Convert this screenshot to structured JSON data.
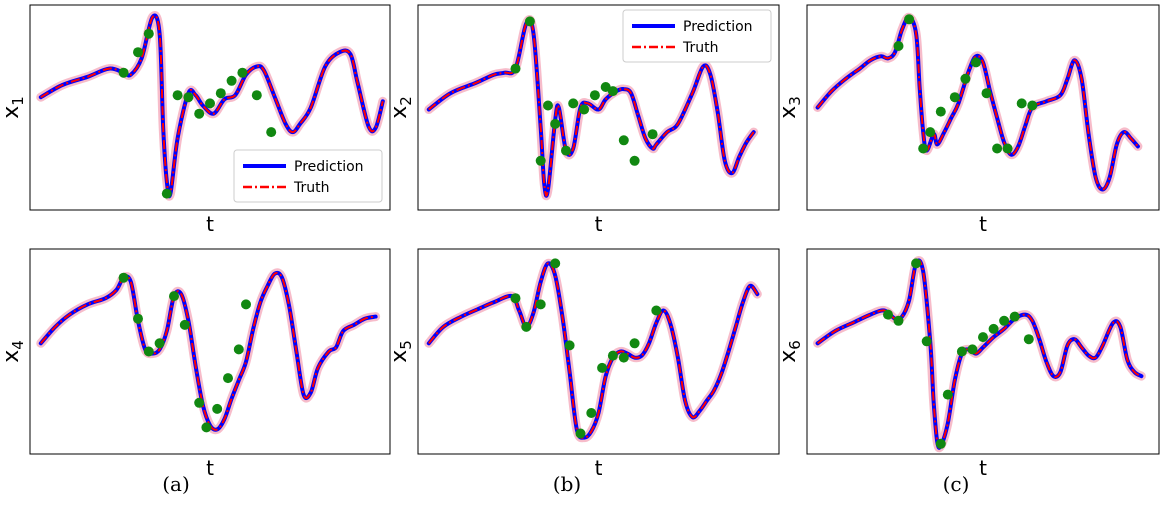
{
  "colors": {
    "prediction": "#0000ff",
    "truth": "#ff0000",
    "uncertainty": "#f4a6b8",
    "observation": "#118811"
  },
  "legend": {
    "prediction": "Prediction",
    "truth": "Truth"
  },
  "captions": [
    "(a)",
    "(b)",
    "(c)"
  ],
  "chart_data": [
    {
      "type": "line",
      "ylabel": "x1",
      "xlabel": "t",
      "legend_position": "lower-right",
      "xlim": [
        0,
        1
      ],
      "ylim": [
        0,
        1
      ],
      "series_points": [
        [
          0.03,
          0.55
        ],
        [
          0.09,
          0.61
        ],
        [
          0.16,
          0.65
        ],
        [
          0.22,
          0.69
        ],
        [
          0.26,
          0.67
        ],
        [
          0.28,
          0.66
        ],
        [
          0.31,
          0.74
        ],
        [
          0.34,
          0.94
        ],
        [
          0.36,
          0.86
        ],
        [
          0.37,
          0.4
        ],
        [
          0.38,
          0.14
        ],
        [
          0.39,
          0.08
        ],
        [
          0.41,
          0.35
        ],
        [
          0.44,
          0.57
        ],
        [
          0.46,
          0.56
        ],
        [
          0.48,
          0.51
        ],
        [
          0.51,
          0.47
        ],
        [
          0.54,
          0.54
        ],
        [
          0.57,
          0.56
        ],
        [
          0.6,
          0.66
        ],
        [
          0.63,
          0.7
        ],
        [
          0.65,
          0.68
        ],
        [
          0.68,
          0.55
        ],
        [
          0.71,
          0.42
        ],
        [
          0.73,
          0.38
        ],
        [
          0.75,
          0.42
        ],
        [
          0.78,
          0.5
        ],
        [
          0.82,
          0.7
        ],
        [
          0.86,
          0.77
        ],
        [
          0.89,
          0.76
        ],
        [
          0.91,
          0.62
        ],
        [
          0.94,
          0.41
        ],
        [
          0.96,
          0.4
        ],
        [
          0.98,
          0.53
        ]
      ],
      "observations": [
        [
          0.26,
          0.67
        ],
        [
          0.3,
          0.77
        ],
        [
          0.33,
          0.86
        ],
        [
          0.38,
          0.08
        ],
        [
          0.41,
          0.56
        ],
        [
          0.44,
          0.55
        ],
        [
          0.47,
          0.47
        ],
        [
          0.5,
          0.52
        ],
        [
          0.53,
          0.57
        ],
        [
          0.56,
          0.63
        ],
        [
          0.59,
          0.67
        ],
        [
          0.63,
          0.56
        ],
        [
          0.67,
          0.38
        ]
      ]
    },
    {
      "type": "line",
      "ylabel": "x2",
      "xlabel": "t",
      "legend_position": "top-right",
      "xlim": [
        0,
        1
      ],
      "ylim": [
        0,
        1
      ],
      "series_points": [
        [
          0.03,
          0.49
        ],
        [
          0.09,
          0.57
        ],
        [
          0.16,
          0.62
        ],
        [
          0.21,
          0.66
        ],
        [
          0.24,
          0.67
        ],
        [
          0.27,
          0.69
        ],
        [
          0.3,
          0.91
        ],
        [
          0.32,
          0.86
        ],
        [
          0.34,
          0.4
        ],
        [
          0.35,
          0.12
        ],
        [
          0.36,
          0.1
        ],
        [
          0.38,
          0.44
        ],
        [
          0.39,
          0.5
        ],
        [
          0.41,
          0.29
        ],
        [
          0.43,
          0.3
        ],
        [
          0.45,
          0.5
        ],
        [
          0.47,
          0.52
        ],
        [
          0.5,
          0.49
        ],
        [
          0.52,
          0.54
        ],
        [
          0.55,
          0.58
        ],
        [
          0.57,
          0.59
        ],
        [
          0.59,
          0.57
        ],
        [
          0.61,
          0.46
        ],
        [
          0.63,
          0.35
        ],
        [
          0.65,
          0.3
        ],
        [
          0.66,
          0.32
        ],
        [
          0.69,
          0.38
        ],
        [
          0.72,
          0.42
        ],
        [
          0.76,
          0.57
        ],
        [
          0.79,
          0.7
        ],
        [
          0.81,
          0.66
        ],
        [
          0.83,
          0.48
        ],
        [
          0.85,
          0.24
        ],
        [
          0.87,
          0.18
        ],
        [
          0.89,
          0.26
        ],
        [
          0.91,
          0.33
        ],
        [
          0.93,
          0.38
        ]
      ],
      "observations": [
        [
          0.27,
          0.69
        ],
        [
          0.31,
          0.92
        ],
        [
          0.34,
          0.24
        ],
        [
          0.36,
          0.51
        ],
        [
          0.38,
          0.42
        ],
        [
          0.41,
          0.29
        ],
        [
          0.43,
          0.52
        ],
        [
          0.46,
          0.49
        ],
        [
          0.49,
          0.56
        ],
        [
          0.52,
          0.6
        ],
        [
          0.54,
          0.58
        ],
        [
          0.57,
          0.34
        ],
        [
          0.6,
          0.24
        ],
        [
          0.65,
          0.37
        ]
      ]
    },
    {
      "type": "line",
      "ylabel": "x3",
      "xlabel": "t",
      "legend_position": "none",
      "xlim": [
        0,
        1
      ],
      "ylim": [
        0,
        1
      ],
      "series_points": [
        [
          0.03,
          0.5
        ],
        [
          0.07,
          0.58
        ],
        [
          0.11,
          0.64
        ],
        [
          0.15,
          0.69
        ],
        [
          0.18,
          0.73
        ],
        [
          0.21,
          0.75
        ],
        [
          0.23,
          0.74
        ],
        [
          0.25,
          0.77
        ],
        [
          0.27,
          0.88
        ],
        [
          0.29,
          0.94
        ],
        [
          0.31,
          0.86
        ],
        [
          0.32,
          0.6
        ],
        [
          0.33,
          0.38
        ],
        [
          0.34,
          0.29
        ],
        [
          0.36,
          0.37
        ],
        [
          0.37,
          0.32
        ],
        [
          0.39,
          0.38
        ],
        [
          0.41,
          0.45
        ],
        [
          0.43,
          0.52
        ],
        [
          0.46,
          0.68
        ],
        [
          0.48,
          0.75
        ],
        [
          0.5,
          0.72
        ],
        [
          0.52,
          0.58
        ],
        [
          0.54,
          0.45
        ],
        [
          0.56,
          0.33
        ],
        [
          0.58,
          0.27
        ],
        [
          0.6,
          0.31
        ],
        [
          0.62,
          0.41
        ],
        [
          0.64,
          0.5
        ],
        [
          0.68,
          0.53
        ],
        [
          0.72,
          0.56
        ],
        [
          0.74,
          0.64
        ],
        [
          0.76,
          0.73
        ],
        [
          0.78,
          0.64
        ],
        [
          0.8,
          0.37
        ],
        [
          0.82,
          0.16
        ],
        [
          0.84,
          0.1
        ],
        [
          0.86,
          0.16
        ],
        [
          0.88,
          0.32
        ],
        [
          0.9,
          0.38
        ],
        [
          0.92,
          0.35
        ],
        [
          0.94,
          0.31
        ]
      ],
      "observations": [
        [
          0.26,
          0.8
        ],
        [
          0.29,
          0.93
        ],
        [
          0.33,
          0.3
        ],
        [
          0.35,
          0.38
        ],
        [
          0.38,
          0.48
        ],
        [
          0.42,
          0.55
        ],
        [
          0.45,
          0.64
        ],
        [
          0.48,
          0.72
        ],
        [
          0.51,
          0.57
        ],
        [
          0.54,
          0.3
        ],
        [
          0.57,
          0.3
        ],
        [
          0.61,
          0.52
        ],
        [
          0.64,
          0.51
        ]
      ]
    },
    {
      "type": "line",
      "ylabel": "x4",
      "xlabel": "t",
      "legend_position": "none",
      "xlim": [
        0,
        1
      ],
      "ylim": [
        0,
        1
      ],
      "series_points": [
        [
          0.03,
          0.54
        ],
        [
          0.07,
          0.62
        ],
        [
          0.11,
          0.68
        ],
        [
          0.16,
          0.73
        ],
        [
          0.21,
          0.76
        ],
        [
          0.24,
          0.8
        ],
        [
          0.26,
          0.86
        ],
        [
          0.28,
          0.84
        ],
        [
          0.3,
          0.65
        ],
        [
          0.32,
          0.51
        ],
        [
          0.34,
          0.49
        ],
        [
          0.36,
          0.51
        ],
        [
          0.38,
          0.6
        ],
        [
          0.4,
          0.77
        ],
        [
          0.42,
          0.78
        ],
        [
          0.44,
          0.65
        ],
        [
          0.46,
          0.43
        ],
        [
          0.48,
          0.24
        ],
        [
          0.5,
          0.14
        ],
        [
          0.52,
          0.12
        ],
        [
          0.54,
          0.17
        ],
        [
          0.56,
          0.27
        ],
        [
          0.58,
          0.36
        ],
        [
          0.6,
          0.45
        ],
        [
          0.62,
          0.61
        ],
        [
          0.64,
          0.74
        ],
        [
          0.66,
          0.82
        ],
        [
          0.68,
          0.88
        ],
        [
          0.7,
          0.86
        ],
        [
          0.72,
          0.72
        ],
        [
          0.74,
          0.5
        ],
        [
          0.76,
          0.29
        ],
        [
          0.78,
          0.3
        ],
        [
          0.8,
          0.42
        ],
        [
          0.83,
          0.5
        ],
        [
          0.85,
          0.52
        ],
        [
          0.87,
          0.6
        ],
        [
          0.9,
          0.63
        ],
        [
          0.93,
          0.66
        ],
        [
          0.96,
          0.67
        ]
      ],
      "observations": [
        [
          0.26,
          0.86
        ],
        [
          0.3,
          0.66
        ],
        [
          0.33,
          0.5
        ],
        [
          0.36,
          0.54
        ],
        [
          0.4,
          0.77
        ],
        [
          0.43,
          0.63
        ],
        [
          0.47,
          0.25
        ],
        [
          0.49,
          0.13
        ],
        [
          0.52,
          0.22
        ],
        [
          0.55,
          0.37
        ],
        [
          0.58,
          0.51
        ],
        [
          0.6,
          0.73
        ]
      ]
    },
    {
      "type": "line",
      "ylabel": "x5",
      "xlabel": "t",
      "legend_position": "none",
      "xlim": [
        0,
        1
      ],
      "ylim": [
        0,
        1
      ],
      "series_points": [
        [
          0.03,
          0.54
        ],
        [
          0.07,
          0.62
        ],
        [
          0.12,
          0.67
        ],
        [
          0.17,
          0.71
        ],
        [
          0.21,
          0.74
        ],
        [
          0.26,
          0.77
        ],
        [
          0.28,
          0.7
        ],
        [
          0.3,
          0.62
        ],
        [
          0.32,
          0.69
        ],
        [
          0.34,
          0.84
        ],
        [
          0.36,
          0.93
        ],
        [
          0.38,
          0.87
        ],
        [
          0.4,
          0.67
        ],
        [
          0.42,
          0.4
        ],
        [
          0.44,
          0.12
        ],
        [
          0.46,
          0.08
        ],
        [
          0.48,
          0.11
        ],
        [
          0.5,
          0.2
        ],
        [
          0.52,
          0.38
        ],
        [
          0.54,
          0.47
        ],
        [
          0.56,
          0.5
        ],
        [
          0.58,
          0.49
        ],
        [
          0.6,
          0.47
        ],
        [
          0.62,
          0.48
        ],
        [
          0.64,
          0.54
        ],
        [
          0.66,
          0.64
        ],
        [
          0.68,
          0.7
        ],
        [
          0.7,
          0.63
        ],
        [
          0.72,
          0.47
        ],
        [
          0.74,
          0.26
        ],
        [
          0.76,
          0.18
        ],
        [
          0.78,
          0.21
        ],
        [
          0.8,
          0.26
        ],
        [
          0.82,
          0.31
        ],
        [
          0.84,
          0.39
        ],
        [
          0.86,
          0.5
        ],
        [
          0.88,
          0.62
        ],
        [
          0.9,
          0.74
        ],
        [
          0.92,
          0.82
        ],
        [
          0.94,
          0.78
        ]
      ],
      "observations": [
        [
          0.27,
          0.76
        ],
        [
          0.3,
          0.62
        ],
        [
          0.34,
          0.73
        ],
        [
          0.38,
          0.93
        ],
        [
          0.42,
          0.53
        ],
        [
          0.45,
          0.1
        ],
        [
          0.48,
          0.2
        ],
        [
          0.51,
          0.42
        ],
        [
          0.54,
          0.48
        ],
        [
          0.57,
          0.47
        ],
        [
          0.6,
          0.54
        ],
        [
          0.66,
          0.7
        ]
      ]
    },
    {
      "type": "line",
      "ylabel": "x6",
      "xlabel": "t",
      "legend_position": "none",
      "xlim": [
        0,
        1
      ],
      "ylim": [
        0,
        1
      ],
      "series_points": [
        [
          0.03,
          0.54
        ],
        [
          0.08,
          0.6
        ],
        [
          0.13,
          0.64
        ],
        [
          0.18,
          0.68
        ],
        [
          0.22,
          0.7
        ],
        [
          0.25,
          0.66
        ],
        [
          0.27,
          0.67
        ],
        [
          0.29,
          0.75
        ],
        [
          0.31,
          0.93
        ],
        [
          0.33,
          0.89
        ],
        [
          0.35,
          0.55
        ],
        [
          0.36,
          0.25
        ],
        [
          0.37,
          0.06
        ],
        [
          0.38,
          0.04
        ],
        [
          0.4,
          0.15
        ],
        [
          0.42,
          0.36
        ],
        [
          0.44,
          0.49
        ],
        [
          0.46,
          0.51
        ],
        [
          0.48,
          0.49
        ],
        [
          0.5,
          0.52
        ],
        [
          0.53,
          0.57
        ],
        [
          0.56,
          0.61
        ],
        [
          0.59,
          0.66
        ],
        [
          0.62,
          0.68
        ],
        [
          0.64,
          0.65
        ],
        [
          0.66,
          0.56
        ],
        [
          0.68,
          0.45
        ],
        [
          0.7,
          0.38
        ],
        [
          0.72,
          0.4
        ],
        [
          0.74,
          0.53
        ],
        [
          0.76,
          0.56
        ],
        [
          0.78,
          0.52
        ],
        [
          0.8,
          0.48
        ],
        [
          0.82,
          0.47
        ],
        [
          0.84,
          0.53
        ],
        [
          0.87,
          0.64
        ],
        [
          0.89,
          0.62
        ],
        [
          0.91,
          0.46
        ],
        [
          0.93,
          0.4
        ],
        [
          0.95,
          0.38
        ]
      ],
      "observations": [
        [
          0.23,
          0.68
        ],
        [
          0.26,
          0.65
        ],
        [
          0.31,
          0.93
        ],
        [
          0.34,
          0.55
        ],
        [
          0.38,
          0.05
        ],
        [
          0.4,
          0.29
        ],
        [
          0.44,
          0.5
        ],
        [
          0.47,
          0.51
        ],
        [
          0.5,
          0.57
        ],
        [
          0.53,
          0.61
        ],
        [
          0.56,
          0.65
        ],
        [
          0.59,
          0.67
        ],
        [
          0.63,
          0.56
        ]
      ]
    }
  ]
}
